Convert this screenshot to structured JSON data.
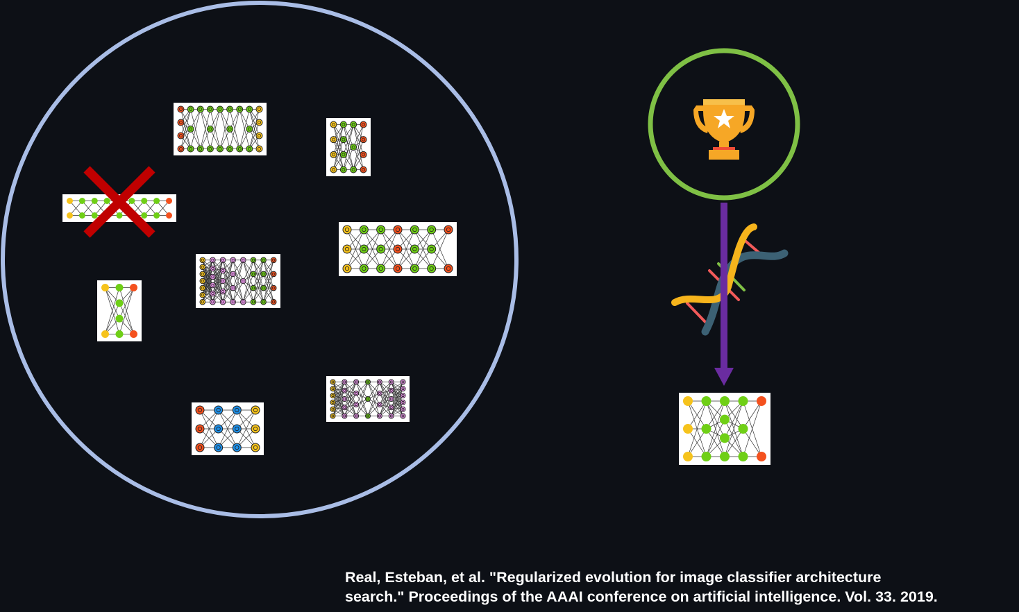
{
  "citation": {
    "line1": "Real, Esteban, et al. \"Regularized evolution for image classifier architecture",
    "line2": "search.\" Proceedings of the AAAI conference on artificial intelligence. Vol. 33. 2019."
  },
  "colors": {
    "background": "#0d1016",
    "population_ring": "#a9bde6",
    "winner_ring": "#7fc045",
    "removal_cross": "#c00000",
    "mutation_arrow": "#6a2ca0",
    "node_input": "#f6c31c",
    "node_hidden": "#6fcf16",
    "node_output": "#f4511e",
    "node_pink": "#f19af2",
    "node_blue": "#1f8fe6"
  },
  "icons": [
    "trophy-icon",
    "dna-icon",
    "removal-cross-icon"
  ]
}
